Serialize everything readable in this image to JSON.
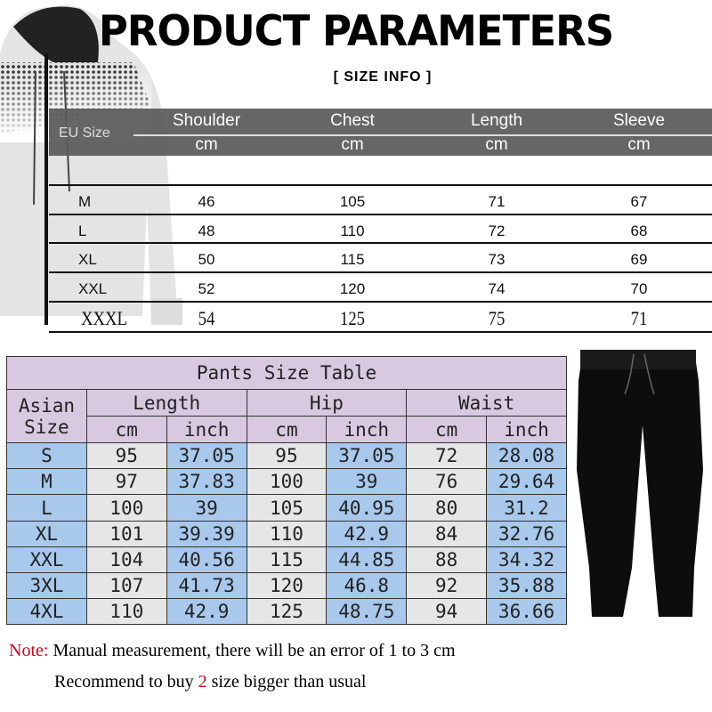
{
  "title": "PRODUCT PARAMETERS",
  "subtitle": "[ SIZE INFO ]",
  "top_table": {
    "size_header": "EU Size",
    "columns": [
      {
        "label": "Shoulder",
        "unit": "cm"
      },
      {
        "label": "Chest",
        "unit": "cm"
      },
      {
        "label": "Length",
        "unit": "cm"
      },
      {
        "label": "Sleeve",
        "unit": "cm"
      }
    ],
    "rows": [
      [
        "M",
        "46",
        "105",
        "71",
        "67"
      ],
      [
        "L",
        "48",
        "110",
        "72",
        "68"
      ],
      [
        "XL",
        "50",
        "115",
        "73",
        "69"
      ],
      [
        "XXL",
        "52",
        "120",
        "74",
        "70"
      ],
      [
        "XXXL",
        "54",
        "125",
        "75",
        "71"
      ]
    ]
  },
  "pants_table": {
    "title": "Pants Size Table",
    "size_header": [
      "Asian",
      "Size"
    ],
    "groups": [
      "Length",
      "Hip",
      "Waist"
    ],
    "units": [
      "cm",
      "inch",
      "cm",
      "inch",
      "cm",
      "inch"
    ],
    "rows": [
      [
        "S",
        "95",
        "37.05",
        "95",
        "37.05",
        "72",
        "28.08"
      ],
      [
        "M",
        "97",
        "37.83",
        "100",
        "39",
        "76",
        "29.64"
      ],
      [
        "L",
        "100",
        "39",
        "105",
        "40.95",
        "80",
        "31.2"
      ],
      [
        "XL",
        "101",
        "39.39",
        "110",
        "42.9",
        "84",
        "32.76"
      ],
      [
        "XXL",
        "104",
        "40.56",
        "115",
        "44.85",
        "88",
        "34.32"
      ],
      [
        "3XL",
        "107",
        "41.73",
        "120",
        "46.8",
        "92",
        "35.88"
      ],
      [
        "4XL",
        "110",
        "42.9",
        "125",
        "48.75",
        "94",
        "36.66"
      ]
    ]
  },
  "note": {
    "label": "Note:",
    "text": " Manual measurement, there will be an error of 1 to 3 cm",
    "line2_pre": "Recommend to buy ",
    "line2_num": "2",
    "line2_post": " size bigger than usual"
  },
  "colors": {
    "header_lavender": "#d8c8e0",
    "cell_gray": "#e6e6e6",
    "cell_blue": "#a8c8ec",
    "note_red": "#d0021b",
    "top_header": "#5a5a5a"
  }
}
